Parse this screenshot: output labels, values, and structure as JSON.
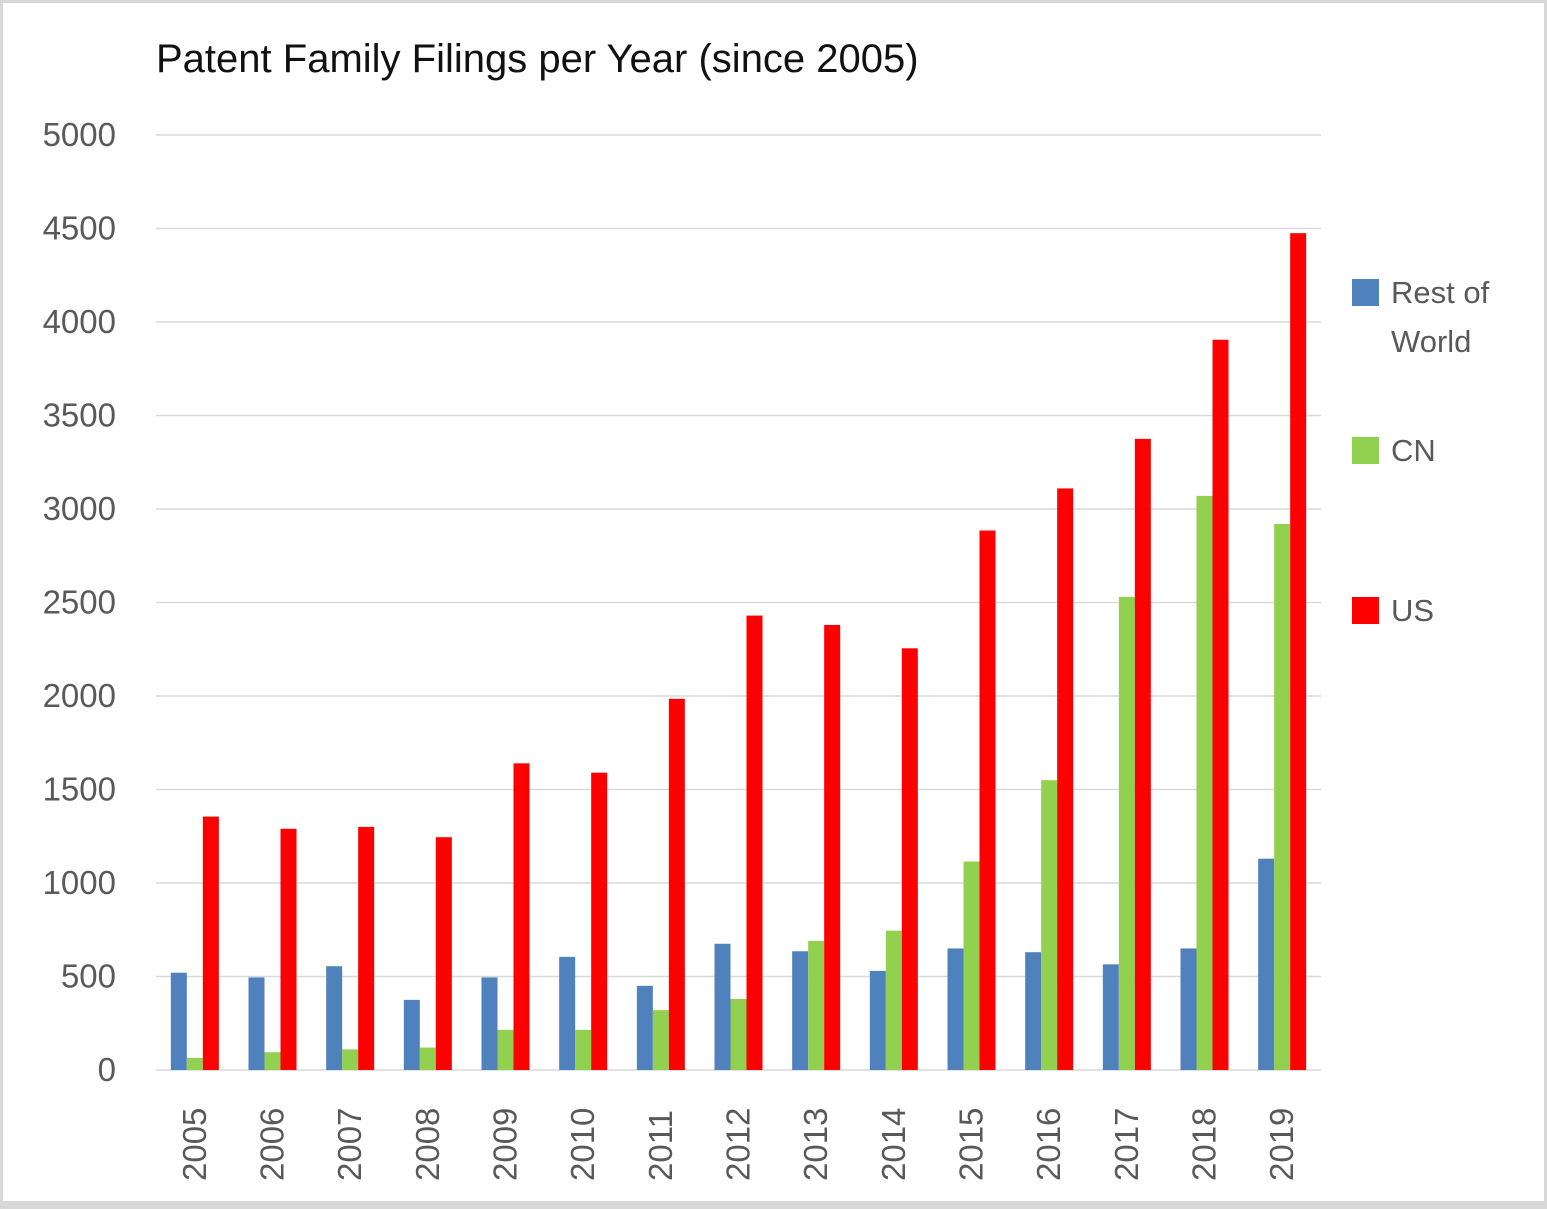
{
  "chart_data": {
    "type": "bar",
    "title": "Patent Family Filings per Year (since 2005)",
    "categories": [
      "2005",
      "2006",
      "2007",
      "2008",
      "2009",
      "2010",
      "2011",
      "2012",
      "2013",
      "2014",
      "2015",
      "2016",
      "2017",
      "2018",
      "2019"
    ],
    "series": [
      {
        "name": "Rest of World",
        "color": "#4F81BD",
        "values": [
          520,
          495,
          555,
          375,
          495,
          605,
          450,
          675,
          635,
          530,
          650,
          630,
          565,
          650,
          1130
        ]
      },
      {
        "name": "CN",
        "color": "#92D050",
        "values": [
          65,
          95,
          110,
          120,
          215,
          215,
          320,
          380,
          690,
          745,
          1115,
          1550,
          2530,
          3070,
          2920
        ]
      },
      {
        "name": "US",
        "color": "#FF0000",
        "values": [
          1355,
          1290,
          1300,
          1245,
          1640,
          1590,
          1985,
          2430,
          2380,
          2255,
          2885,
          3110,
          3375,
          3905,
          4475
        ]
      }
    ],
    "xlabel": "",
    "ylabel": "",
    "ylim": [
      0,
      5000
    ],
    "ytick_step": 500,
    "ytick_labels": [
      "0",
      "500",
      "1000",
      "1500",
      "2000",
      "2500",
      "3000",
      "3500",
      "4000",
      "4500",
      "5000"
    ],
    "grid": true,
    "legend_position": "right",
    "gridline_color": "#D9D9D9",
    "axis_label_color": "#595959"
  }
}
